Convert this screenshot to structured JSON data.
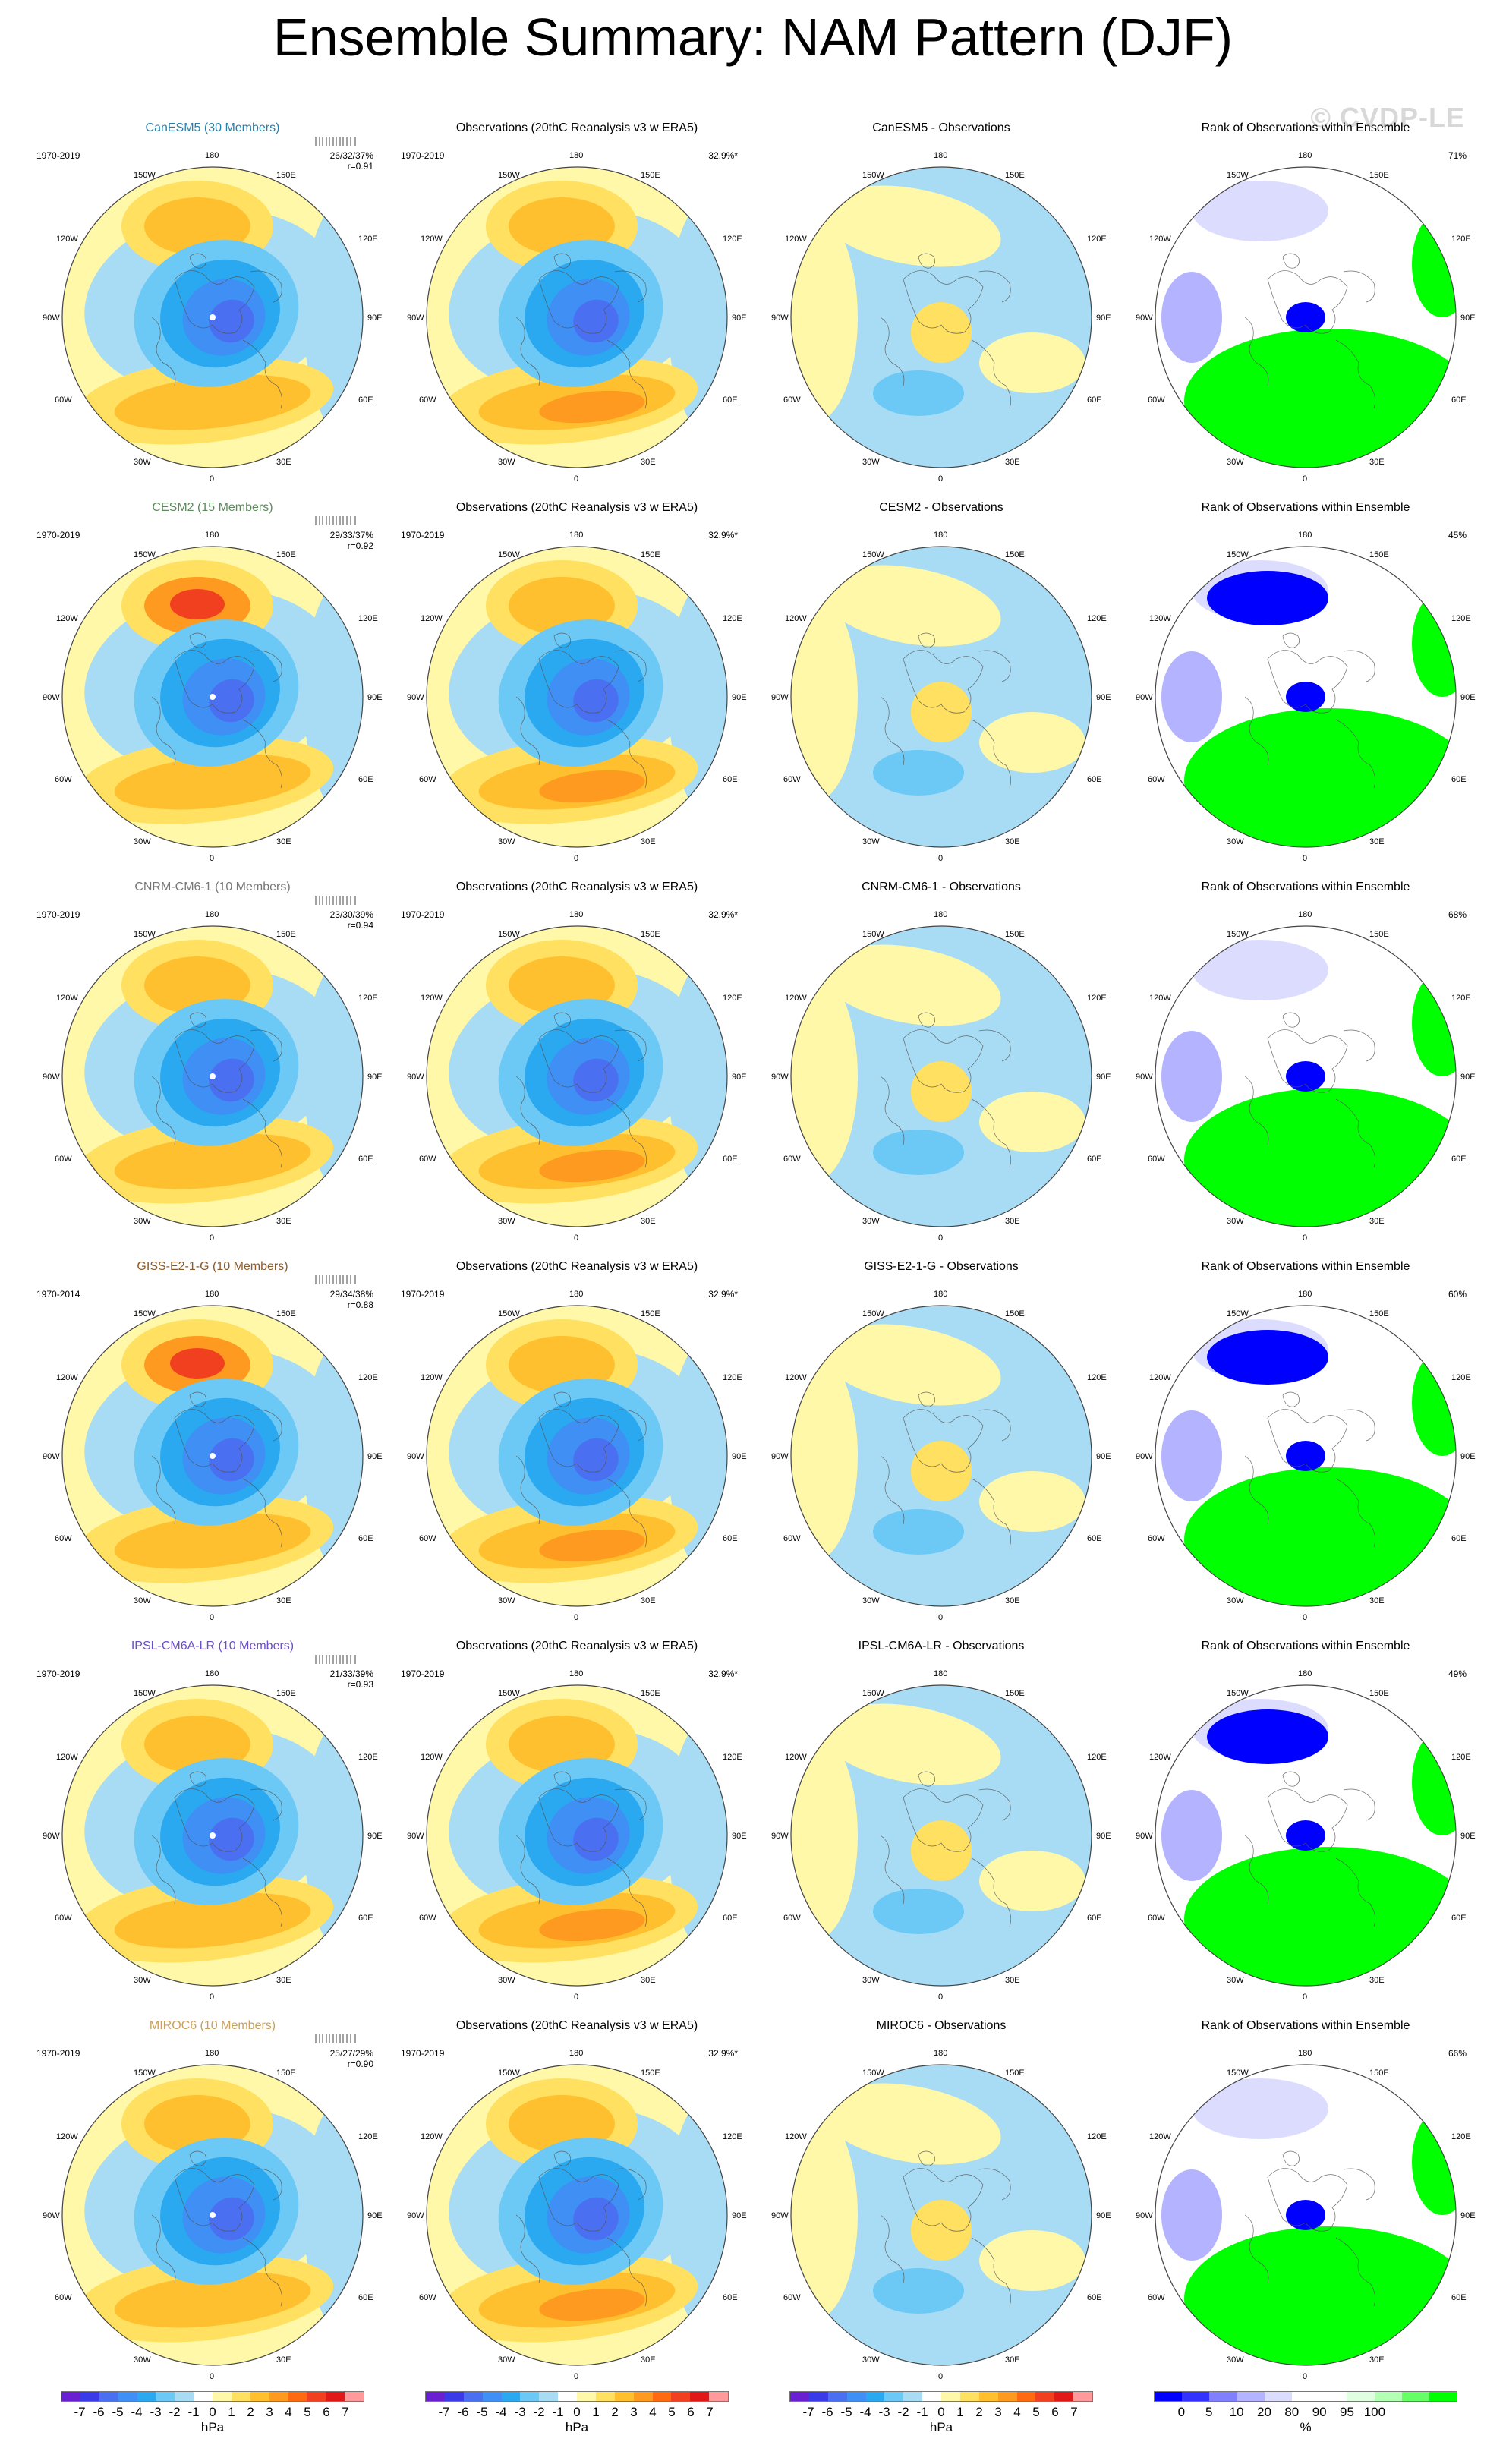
{
  "title": "Ensemble Summary: NAM Pattern (DJF)",
  "watermark": "© CVDP-LE",
  "lon_labels": {
    "n180": "180",
    "n150w": "150W",
    "n150e": "150E",
    "n120w": "120W",
    "n120e": "120E",
    "w90": "90W",
    "e90": "90E",
    "s60w": "60W",
    "s60e": "60E",
    "s30w": "30W",
    "s30e": "30E",
    "s0": "0"
  },
  "obs_title": "Observations (20thC Reanalysis v3 w ERA5)",
  "obs_variance": "32.9%*",
  "rank_title": "Rank of Observations within Ensemble",
  "rows": [
    {
      "model_title": "CanESM5 (30 Members)",
      "title_color": "#2a7fa8",
      "period": "1970-2019",
      "model_stat1": "26/32/37%",
      "model_stat2": "r=0.91",
      "obs_period": "1970-2019",
      "diff_title": "CanESM5 - Observations",
      "rank_pct": "71%"
    },
    {
      "model_title": "CESM2 (15 Members)",
      "title_color": "#5c8a5c",
      "period": "1970-2019",
      "model_stat1": "29/33/37%",
      "model_stat2": "r=0.92",
      "obs_period": "1970-2019",
      "diff_title": "CESM2 - Observations",
      "rank_pct": "45%"
    },
    {
      "model_title": "CNRM-CM6-1 (10 Members)",
      "title_color": "#777777",
      "period": "1970-2019",
      "model_stat1": "23/30/39%",
      "model_stat2": "r=0.94",
      "obs_period": "1970-2019",
      "diff_title": "CNRM-CM6-1 - Observations",
      "rank_pct": "68%"
    },
    {
      "model_title": "GISS-E2-1-G (10 Members)",
      "title_color": "#8a5a2b",
      "period": "1970-2014",
      "model_stat1": "29/34/38%",
      "model_stat2": "r=0.88",
      "obs_period": "1970-2019",
      "diff_title": "GISS-E2-1-G - Observations",
      "rank_pct": "60%"
    },
    {
      "model_title": "IPSL-CM6A-LR (10 Members)",
      "title_color": "#6a4fc8",
      "period": "1970-2019",
      "model_stat1": "21/33/39%",
      "model_stat2": "r=0.93",
      "obs_period": "1970-2019",
      "diff_title": "IPSL-CM6A-LR - Observations",
      "rank_pct": "49%"
    },
    {
      "model_title": "MIROC6 (10 Members)",
      "title_color": "#c8a060",
      "period": "1970-2019",
      "model_stat1": "25/27/29%",
      "model_stat2": "r=0.90",
      "obs_period": "1970-2019",
      "diff_title": "MIROC6 - Observations",
      "rank_pct": "66%"
    }
  ],
  "colorbars": {
    "hpa_colors": [
      "#6a1fd0",
      "#3a3ae8",
      "#4a6ff0",
      "#3f8ff5",
      "#2aa8f0",
      "#6cc8f5",
      "#a8dcf5",
      "#ffffff",
      "#fff8a8",
      "#ffe060",
      "#ffc030",
      "#ff9a20",
      "#ff6a10",
      "#f04020",
      "#e01818",
      "#ff9a9a"
    ],
    "hpa_ticks": [
      "-7",
      "-6",
      "-5",
      "-4",
      "-3",
      "-2",
      "-1",
      "0",
      "1",
      "2",
      "3",
      "4",
      "5",
      "6",
      "7"
    ],
    "hpa_unit": "hPa",
    "rank_colors": [
      "#0000ff",
      "#3333ff",
      "#8080ff",
      "#b3b3ff",
      "#dcdcff",
      "#ffffff",
      "#ffffff",
      "#e0ffe0",
      "#b3ffb3",
      "#66ff66",
      "#00ff00"
    ],
    "rank_ticks": [
      "0",
      "5",
      "10",
      "20",
      "80",
      "90",
      "95",
      "100"
    ],
    "rank_unit": "%"
  }
}
